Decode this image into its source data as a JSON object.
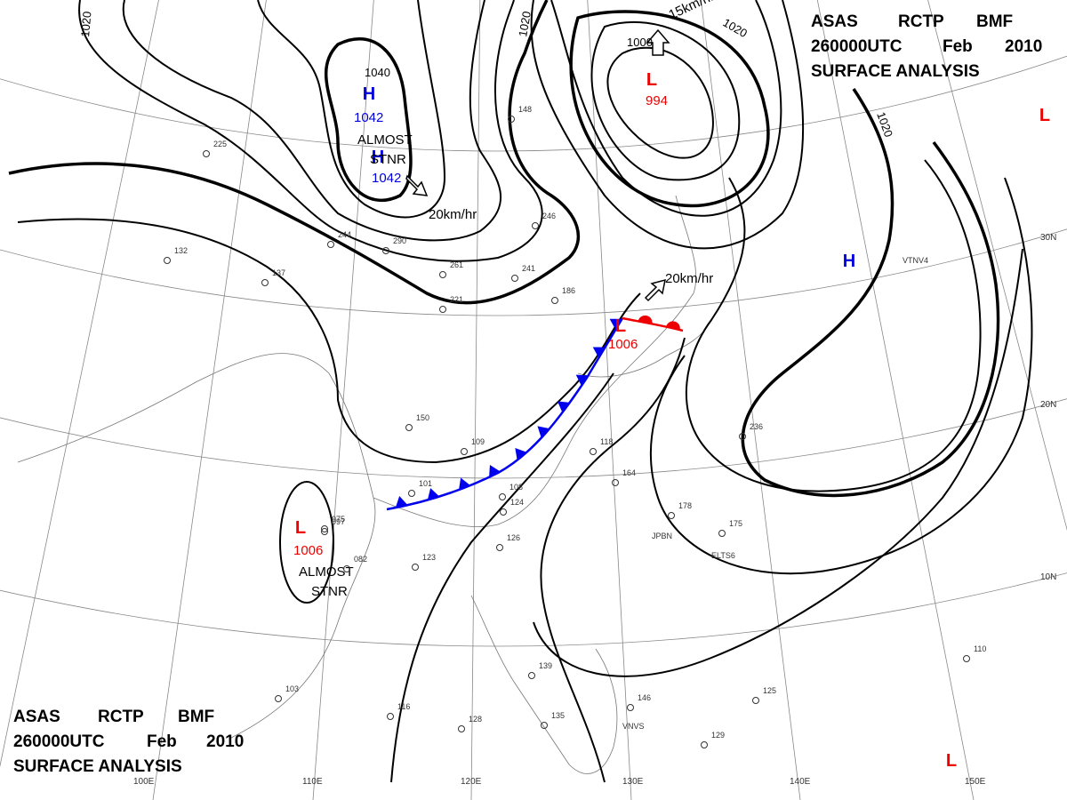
{
  "headers": [
    {
      "agency": "ASAS",
      "station": "RCTP",
      "office": "BMF",
      "time": "260000UTC",
      "month": "Feb",
      "year": "2010",
      "title": "SURFACE ANALYSIS"
    },
    {
      "agency": "ASAS",
      "station": "RCTP",
      "office": "BMF",
      "time": "260000UTC",
      "month": "Feb",
      "year": "2010",
      "title": "SURFACE ANALYSIS"
    }
  ],
  "pressure_systems": [
    {
      "symbol": "H",
      "value": "1042"
    },
    {
      "symbol": "H",
      "value": "1042"
    },
    {
      "symbol": "L",
      "value": "994"
    },
    {
      "symbol": "L",
      "value": "1006"
    },
    {
      "symbol": "L",
      "value": "1006"
    },
    {
      "symbol": "H"
    },
    {
      "symbol": "L"
    },
    {
      "symbol": "L"
    }
  ],
  "isobar_labels": [
    "1020",
    "1040",
    "1020",
    "1000",
    "1020",
    "1020"
  ],
  "motion_labels": [
    "20km/hr",
    "20km/hr",
    "15km/hr"
  ],
  "notes": [
    {
      "lines": [
        "ALMOST",
        "STNR"
      ]
    },
    {
      "lines": [
        "ALMOST",
        "STNR"
      ]
    }
  ],
  "longitude_labels": [
    "100E",
    "110E",
    "120E",
    "130E",
    "140E",
    "150E"
  ],
  "latitude_labels": [
    "30N",
    "20N",
    "10N"
  ],
  "station_ids": [
    "JPBN",
    "ELTS6",
    "VNVS",
    "VTNV4"
  ],
  "station_values": [
    "236",
    "178",
    "175",
    "164",
    "118",
    "124",
    "126",
    "123",
    "101",
    "108",
    "109",
    "150",
    "221",
    "186",
    "261",
    "241",
    "246",
    "148",
    "290",
    "244",
    "225",
    "137",
    "132",
    "097",
    "103",
    "116",
    "128",
    "146",
    "125",
    "110",
    "129",
    "135",
    "139",
    "082",
    "075"
  ]
}
